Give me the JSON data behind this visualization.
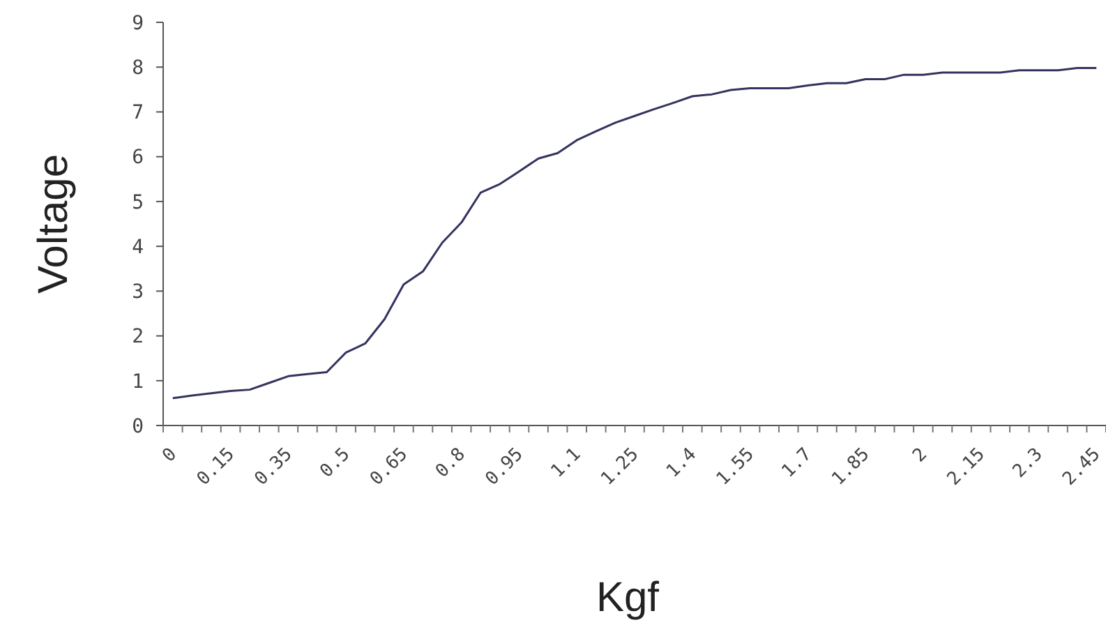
{
  "chart_data": {
    "type": "line",
    "xlabel": "Kgf",
    "ylabel": "Voltage",
    "categories": [
      "0",
      null,
      null,
      "0.15",
      null,
      null,
      "0.35",
      null,
      null,
      "0.5",
      null,
      null,
      "0.65",
      null,
      null,
      "0.8",
      null,
      null,
      "0.95",
      null,
      null,
      "1.1",
      null,
      null,
      "1.25",
      null,
      null,
      "1.4",
      null,
      null,
      "1.55",
      null,
      null,
      "1.7",
      null,
      null,
      "1.85",
      null,
      null,
      "2",
      null,
      null,
      "2.15",
      null,
      null,
      "2.3",
      null,
      null,
      "2.45"
    ],
    "series": [
      {
        "color": "#33335f",
        "values": [
          0.61,
          0.67,
          0.72,
          0.77,
          0.8,
          0.95,
          1.1,
          1.15,
          1.19,
          1.63,
          1.83,
          2.37,
          3.15,
          3.44,
          4.08,
          4.53,
          5.2,
          5.39,
          5.67,
          5.96,
          6.08,
          6.37,
          6.57,
          6.76,
          6.91,
          7.06,
          7.2,
          7.35,
          7.39,
          7.49,
          7.53,
          7.53,
          7.53,
          7.59,
          7.64,
          7.64,
          7.73,
          7.73,
          7.83,
          7.83,
          7.88,
          7.88,
          7.88,
          7.88,
          7.93,
          7.93,
          7.93,
          7.98,
          7.98
        ]
      }
    ],
    "ylim": [
      0,
      9
    ],
    "yticks": [
      0,
      1,
      2,
      3,
      4,
      5,
      6,
      7,
      8,
      9
    ],
    "grid": false,
    "marker": "none",
    "line_style": "solid"
  }
}
